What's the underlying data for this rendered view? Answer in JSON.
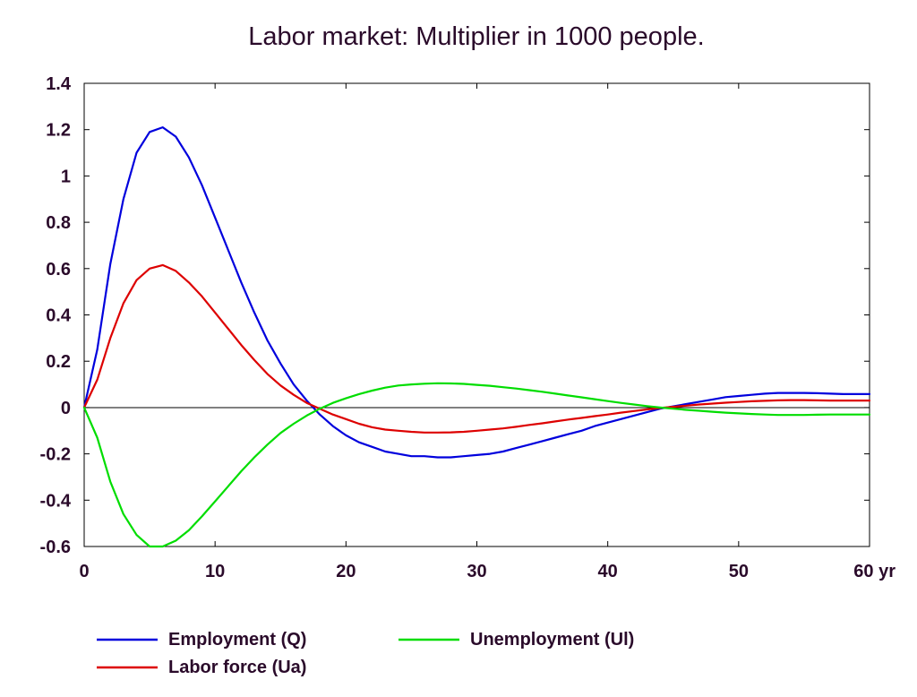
{
  "chart_data": {
    "type": "line",
    "title": "Labor market: Multiplier in 1000 people.",
    "xlabel": "",
    "ylabel": "",
    "xlim": [
      0,
      60
    ],
    "ylim": [
      -0.6,
      1.4
    ],
    "grid": false,
    "legend_position": "bottom",
    "x_ticks": [
      {
        "value": 0,
        "label": "0"
      },
      {
        "value": 10,
        "label": "10"
      },
      {
        "value": 20,
        "label": "20"
      },
      {
        "value": 30,
        "label": "30"
      },
      {
        "value": 40,
        "label": "40"
      },
      {
        "value": 50,
        "label": "50"
      },
      {
        "value": 60,
        "label": "60 yr"
      }
    ],
    "y_ticks": [
      {
        "value": 1.4,
        "label": "1.4"
      },
      {
        "value": 1.2,
        "label": "1.2"
      },
      {
        "value": 1.0,
        "label": "1"
      },
      {
        "value": 0.8,
        "label": "0.8"
      },
      {
        "value": 0.6,
        "label": "0.6"
      },
      {
        "value": 0.4,
        "label": "0.4"
      },
      {
        "value": 0.2,
        "label": "0.2"
      },
      {
        "value": 0.0,
        "label": "0"
      },
      {
        "value": -0.2,
        "label": "-0.2"
      },
      {
        "value": -0.4,
        "label": "-0.4"
      },
      {
        "value": -0.6,
        "label": "-0.6"
      }
    ],
    "series": [
      {
        "name": "Employment (Q)",
        "color": "#0000dd",
        "points": [
          [
            0,
            0
          ],
          [
            1,
            0.25
          ],
          [
            2,
            0.62
          ],
          [
            3,
            0.9
          ],
          [
            4,
            1.1
          ],
          [
            5,
            1.19
          ],
          [
            6,
            1.21
          ],
          [
            7,
            1.17
          ],
          [
            8,
            1.08
          ],
          [
            9,
            0.96
          ],
          [
            10,
            0.82
          ],
          [
            11,
            0.68
          ],
          [
            12,
            0.54
          ],
          [
            13,
            0.41
          ],
          [
            14,
            0.29
          ],
          [
            15,
            0.19
          ],
          [
            16,
            0.1
          ],
          [
            17,
            0.03
          ],
          [
            18,
            -0.03
          ],
          [
            19,
            -0.08
          ],
          [
            20,
            -0.12
          ],
          [
            21,
            -0.15
          ],
          [
            22,
            -0.17
          ],
          [
            23,
            -0.19
          ],
          [
            24,
            -0.2
          ],
          [
            25,
            -0.21
          ],
          [
            26,
            -0.21
          ],
          [
            27,
            -0.215
          ],
          [
            28,
            -0.215
          ],
          [
            29,
            -0.21
          ],
          [
            30,
            -0.205
          ],
          [
            31,
            -0.2
          ],
          [
            32,
            -0.19
          ],
          [
            33,
            -0.175
          ],
          [
            34,
            -0.16
          ],
          [
            35,
            -0.145
          ],
          [
            36,
            -0.13
          ],
          [
            37,
            -0.115
          ],
          [
            38,
            -0.1
          ],
          [
            39,
            -0.08
          ],
          [
            40,
            -0.065
          ],
          [
            41,
            -0.05
          ],
          [
            42,
            -0.035
          ],
          [
            43,
            -0.02
          ],
          [
            44,
            -0.005
          ],
          [
            45,
            0.005
          ],
          [
            46,
            0.015
          ],
          [
            47,
            0.025
          ],
          [
            48,
            0.035
          ],
          [
            49,
            0.045
          ],
          [
            50,
            0.05
          ],
          [
            51,
            0.055
          ],
          [
            52,
            0.06
          ],
          [
            53,
            0.063
          ],
          [
            54,
            0.063
          ],
          [
            55,
            0.063
          ],
          [
            56,
            0.062
          ],
          [
            57,
            0.06
          ],
          [
            58,
            0.058
          ],
          [
            59,
            0.058
          ],
          [
            60,
            0.058
          ]
        ]
      },
      {
        "name": "Labor force (Ua)",
        "color": "#dd0000",
        "points": [
          [
            0,
            0
          ],
          [
            1,
            0.12
          ],
          [
            2,
            0.3
          ],
          [
            3,
            0.45
          ],
          [
            4,
            0.55
          ],
          [
            5,
            0.6
          ],
          [
            6,
            0.615
          ],
          [
            7,
            0.59
          ],
          [
            8,
            0.54
          ],
          [
            9,
            0.48
          ],
          [
            10,
            0.41
          ],
          [
            11,
            0.34
          ],
          [
            12,
            0.27
          ],
          [
            13,
            0.205
          ],
          [
            14,
            0.145
          ],
          [
            15,
            0.095
          ],
          [
            16,
            0.055
          ],
          [
            17,
            0.02
          ],
          [
            18,
            -0.005
          ],
          [
            19,
            -0.03
          ],
          [
            20,
            -0.05
          ],
          [
            21,
            -0.07
          ],
          [
            22,
            -0.085
          ],
          [
            23,
            -0.095
          ],
          [
            24,
            -0.1
          ],
          [
            25,
            -0.105
          ],
          [
            26,
            -0.108
          ],
          [
            27,
            -0.108
          ],
          [
            28,
            -0.107
          ],
          [
            29,
            -0.105
          ],
          [
            30,
            -0.1
          ],
          [
            31,
            -0.095
          ],
          [
            32,
            -0.09
          ],
          [
            33,
            -0.083
          ],
          [
            34,
            -0.075
          ],
          [
            35,
            -0.068
          ],
          [
            36,
            -0.06
          ],
          [
            37,
            -0.052
          ],
          [
            38,
            -0.045
          ],
          [
            39,
            -0.037
          ],
          [
            40,
            -0.03
          ],
          [
            41,
            -0.022
          ],
          [
            42,
            -0.015
          ],
          [
            43,
            -0.008
          ],
          [
            44,
            -0.002
          ],
          [
            45,
            0.003
          ],
          [
            46,
            0.008
          ],
          [
            47,
            0.013
          ],
          [
            48,
            0.017
          ],
          [
            49,
            0.021
          ],
          [
            50,
            0.024
          ],
          [
            51,
            0.027
          ],
          [
            52,
            0.029
          ],
          [
            53,
            0.031
          ],
          [
            54,
            0.032
          ],
          [
            55,
            0.032
          ],
          [
            56,
            0.031
          ],
          [
            57,
            0.03
          ],
          [
            58,
            0.03
          ],
          [
            59,
            0.03
          ],
          [
            60,
            0.03
          ]
        ]
      },
      {
        "name": "Unemployment (Ul)",
        "color": "#00dd00",
        "points": [
          [
            0,
            0
          ],
          [
            1,
            -0.13
          ],
          [
            2,
            -0.32
          ],
          [
            3,
            -0.46
          ],
          [
            4,
            -0.55
          ],
          [
            5,
            -0.6
          ],
          [
            6,
            -0.6
          ],
          [
            7,
            -0.575
          ],
          [
            8,
            -0.53
          ],
          [
            9,
            -0.47
          ],
          [
            10,
            -0.405
          ],
          [
            11,
            -0.34
          ],
          [
            12,
            -0.275
          ],
          [
            13,
            -0.215
          ],
          [
            14,
            -0.16
          ],
          [
            15,
            -0.11
          ],
          [
            16,
            -0.07
          ],
          [
            17,
            -0.035
          ],
          [
            18,
            -0.005
          ],
          [
            19,
            0.02
          ],
          [
            20,
            0.04
          ],
          [
            21,
            0.058
          ],
          [
            22,
            0.073
          ],
          [
            23,
            0.086
          ],
          [
            24,
            0.095
          ],
          [
            25,
            0.1
          ],
          [
            26,
            0.103
          ],
          [
            27,
            0.105
          ],
          [
            28,
            0.104
          ],
          [
            29,
            0.102
          ],
          [
            30,
            0.098
          ],
          [
            31,
            0.094
          ],
          [
            32,
            0.088
          ],
          [
            33,
            0.082
          ],
          [
            34,
            0.075
          ],
          [
            35,
            0.068
          ],
          [
            36,
            0.06
          ],
          [
            37,
            0.052
          ],
          [
            38,
            0.044
          ],
          [
            39,
            0.036
          ],
          [
            40,
            0.028
          ],
          [
            41,
            0.02
          ],
          [
            42,
            0.013
          ],
          [
            43,
            0.006
          ],
          [
            44,
            0.0
          ],
          [
            45,
            -0.005
          ],
          [
            46,
            -0.01
          ],
          [
            47,
            -0.014
          ],
          [
            48,
            -0.018
          ],
          [
            49,
            -0.022
          ],
          [
            50,
            -0.025
          ],
          [
            51,
            -0.028
          ],
          [
            52,
            -0.03
          ],
          [
            53,
            -0.032
          ],
          [
            54,
            -0.032
          ],
          [
            55,
            -0.032
          ],
          [
            56,
            -0.031
          ],
          [
            57,
            -0.03
          ],
          [
            58,
            -0.03
          ],
          [
            59,
            -0.03
          ],
          [
            60,
            -0.03
          ]
        ]
      }
    ]
  }
}
